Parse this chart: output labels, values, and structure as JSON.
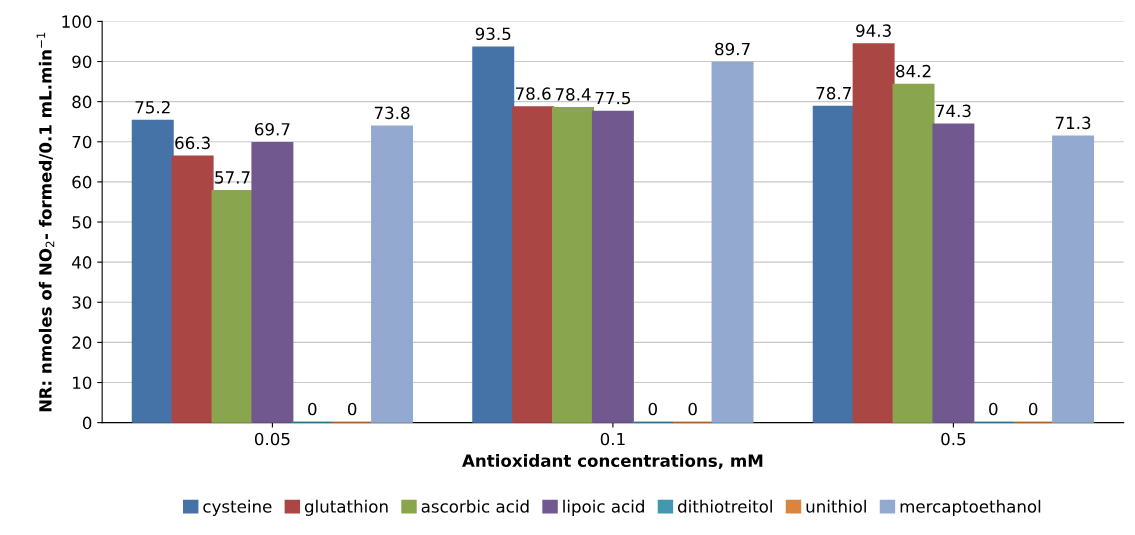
{
  "chart_data": {
    "type": "bar",
    "xlabel": "Antioxidant concentrations, mM",
    "ylabel": "NR: nmoles of NO$_{2}$- formed/0.1 mL.min$^{−1}$",
    "categories": [
      "0.05",
      "0.1",
      "0.5"
    ],
    "series": [
      {
        "name": "cysteine",
        "color": "#4572a7",
        "values": [
          75.2,
          93.5,
          78.7
        ]
      },
      {
        "name": "glutathion",
        "color": "#aa4643",
        "values": [
          66.3,
          78.6,
          94.3
        ]
      },
      {
        "name": "ascorbic acid",
        "color": "#89a54e",
        "values": [
          57.7,
          78.4,
          84.2
        ]
      },
      {
        "name": "lipoic acid",
        "color": "#71588f",
        "values": [
          69.7,
          77.5,
          74.3
        ]
      },
      {
        "name": "dithiotreitol",
        "color": "#4198af",
        "values": [
          0,
          0,
          0
        ]
      },
      {
        "name": "unithiol",
        "color": "#db843d",
        "values": [
          0,
          0,
          0
        ]
      },
      {
        "name": "mercaptoethanol",
        "color": "#93a9cf",
        "values": [
          73.8,
          89.7,
          71.3
        ]
      }
    ],
    "ylim": [
      0,
      100
    ],
    "yticks": [
      0,
      10,
      20,
      30,
      40,
      50,
      60,
      70,
      80,
      90,
      100
    ],
    "grid": "y",
    "legend": "bottom",
    "data_labels": true
  }
}
